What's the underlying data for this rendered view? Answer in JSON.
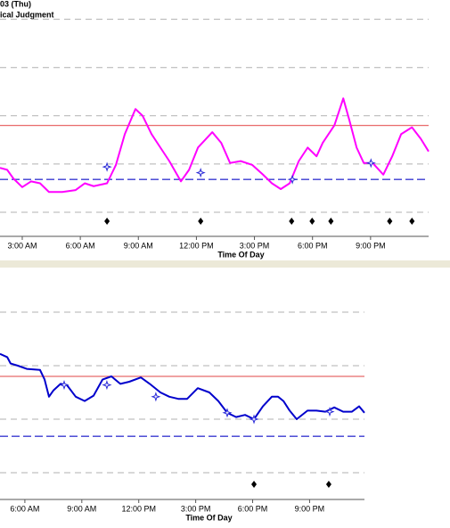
{
  "chart_data": [
    {
      "type": "line",
      "title": "03 (Thu)",
      "subtitle": "ical Judgment",
      "xlabel": "Time Of Day",
      "xlim": [
        1.85,
        24
      ],
      "ylim": [
        25,
        270
      ],
      "xticks": [
        {
          "value": 3,
          "label": "3:00 AM"
        },
        {
          "value": 6,
          "label": "6:00 AM"
        },
        {
          "value": 9,
          "label": "9:00 AM"
        },
        {
          "value": 12,
          "label": "12:00 PM"
        },
        {
          "value": 15,
          "label": "3:00 PM"
        },
        {
          "value": 18,
          "label": "6:00 PM"
        },
        {
          "value": 21,
          "label": "9:00 PM"
        }
      ],
      "grid_lines": [
        50,
        100,
        150,
        200,
        250
      ],
      "ref_lines": [
        {
          "value": 140,
          "color": "#e86a6a",
          "dashed": false
        },
        {
          "value": 84,
          "color": "#3a3ad0",
          "dashed": true
        }
      ],
      "color": "#ff00ff",
      "x": [
        1.85,
        2.22,
        2.54,
        3.0,
        3.46,
        3.92,
        4.38,
        5.07,
        5.76,
        6.23,
        6.69,
        7.38,
        7.84,
        8.3,
        8.85,
        9.22,
        9.68,
        10.14,
        10.6,
        11.2,
        11.62,
        12.08,
        12.82,
        13.28,
        13.74,
        14.29,
        14.89,
        15.44,
        15.9,
        16.36,
        16.82,
        17.29,
        17.75,
        18.21,
        18.53,
        19.13,
        19.59,
        19.91,
        20.28,
        20.65,
        21.11,
        21.66,
        22.12,
        22.58,
        23.14,
        23.6,
        24.0
      ],
      "values": [
        96,
        94,
        85,
        76,
        82,
        80,
        71,
        71,
        73,
        80,
        77,
        80,
        99,
        131,
        157,
        150,
        131,
        117,
        103,
        82,
        94,
        117,
        133,
        122,
        101,
        103,
        99,
        89,
        80,
        74,
        80,
        103,
        117,
        108,
        122,
        140,
        168,
        145,
        117,
        101,
        101,
        89,
        108,
        131,
        138,
        126,
        113
      ],
      "points": {
        "color": "#2a2ad8",
        "x": [
          7.38,
          12.22,
          16.96,
          21.02
        ],
        "values": [
          97,
          91,
          84,
          101
        ]
      },
      "events": {
        "color": "#000000",
        "x": [
          7.38,
          12.22,
          16.92,
          17.98,
          18.95,
          21.99,
          23.14
        ]
      }
    },
    {
      "type": "line",
      "xlabel": "Time Of Day",
      "xlim": [
        4.69,
        23.89
      ],
      "ylim": [
        25,
        240
      ],
      "xticks": [
        {
          "value": 6,
          "label": "6:00 AM"
        },
        {
          "value": 9,
          "label": "9:00 AM"
        },
        {
          "value": 12,
          "label": "12:00 PM"
        },
        {
          "value": 15,
          "label": "3:00 PM"
        },
        {
          "value": 18,
          "label": "6:00 PM"
        },
        {
          "value": 21,
          "label": "9:00 PM"
        }
      ],
      "grid_lines": [
        50,
        100,
        150,
        200
      ],
      "ref_lines": [
        {
          "value": 140,
          "color": "#e86a6a",
          "dashed": false
        },
        {
          "value": 84,
          "color": "#3a3ad0",
          "dashed": true
        }
      ],
      "color": "#0000cc",
      "x": [
        4.69,
        5.07,
        5.25,
        5.63,
        6.1,
        6.8,
        7.04,
        7.27,
        7.51,
        7.88,
        8.21,
        8.68,
        9.15,
        9.62,
        10.09,
        10.56,
        11.03,
        11.5,
        12.11,
        12.58,
        13.14,
        13.61,
        14.08,
        14.55,
        15.11,
        15.72,
        16.19,
        16.66,
        17.13,
        17.6,
        18.07,
        18.54,
        19.01,
        19.34,
        19.62,
        19.95,
        20.32,
        20.89,
        21.36,
        21.83,
        22.3,
        22.77,
        23.23,
        23.61,
        23.89
      ],
      "values": [
        161,
        158,
        152,
        150,
        147,
        146,
        137,
        121,
        127,
        133,
        132,
        121,
        117,
        122,
        137,
        140,
        133,
        135,
        139,
        133,
        125,
        121,
        119,
        119,
        129,
        125,
        117,
        106,
        102,
        104,
        100,
        112,
        121,
        121,
        117,
        108,
        100,
        108,
        108,
        107,
        111,
        107,
        107,
        112,
        106
      ],
      "points": {
        "color": "#2a2ad8",
        "x": [
          8.07,
          10.32,
          12.9,
          16.66,
          18.07,
          22.06
        ],
        "values": [
          132,
          132,
          121,
          106,
          100,
          107
        ]
      },
      "events": {
        "color": "#000000",
        "x": [
          18.07,
          22.01
        ]
      }
    }
  ]
}
